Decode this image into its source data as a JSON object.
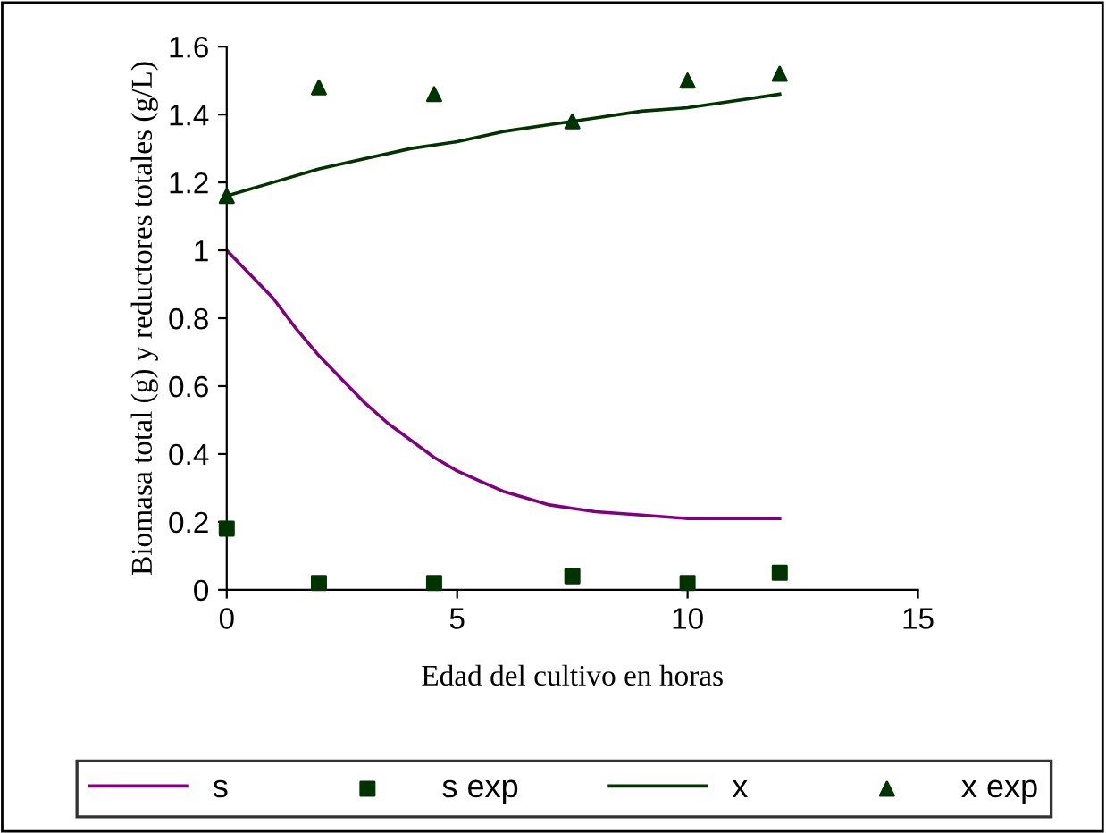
{
  "chart_data": {
    "type": "line",
    "xlabel": "Edad del cultivo en horas",
    "ylabel": "Biomasa total (g) y reductores totales (g/L)",
    "xlim": [
      0,
      15
    ],
    "xticks": [
      0,
      5,
      10,
      15
    ],
    "ylim": [
      0,
      1.6
    ],
    "yticks": [
      0,
      0.2,
      0.4,
      0.6,
      0.8,
      1,
      1.2,
      1.4,
      1.6
    ],
    "grid": false,
    "legend": "bottom",
    "series": [
      {
        "name": "s",
        "color": "#800080",
        "marker": "none",
        "x": [
          0,
          0.5,
          1,
          1.5,
          2,
          2.5,
          3,
          3.5,
          4,
          4.5,
          5,
          5.5,
          6,
          6.5,
          7,
          7.5,
          8,
          9,
          10,
          11,
          12
        ],
        "values": [
          1.0,
          0.93,
          0.86,
          0.77,
          0.69,
          0.62,
          0.55,
          0.49,
          0.44,
          0.39,
          0.35,
          0.32,
          0.29,
          0.27,
          0.25,
          0.24,
          0.23,
          0.22,
          0.21,
          0.21,
          0.21
        ]
      },
      {
        "name": "s exp",
        "type": "scatter",
        "color": "#003300",
        "marker": "square",
        "x": [
          0,
          2,
          4.5,
          7.5,
          10,
          12
        ],
        "values": [
          0.18,
          0.02,
          0.02,
          0.04,
          0.02,
          0.05
        ]
      },
      {
        "name": "x",
        "color": "#003300",
        "marker": "none",
        "x": [
          0,
          1,
          2,
          3,
          4,
          5,
          6,
          7,
          8,
          9,
          10,
          11,
          12
        ],
        "values": [
          1.16,
          1.2,
          1.24,
          1.27,
          1.3,
          1.32,
          1.35,
          1.37,
          1.39,
          1.41,
          1.42,
          1.44,
          1.46
        ]
      },
      {
        "name": "x exp",
        "type": "scatter",
        "color": "#003300",
        "marker": "triangle",
        "x": [
          0,
          2,
          4.5,
          7.5,
          10,
          12
        ],
        "values": [
          1.16,
          1.48,
          1.46,
          1.38,
          1.5,
          1.52
        ]
      }
    ]
  }
}
